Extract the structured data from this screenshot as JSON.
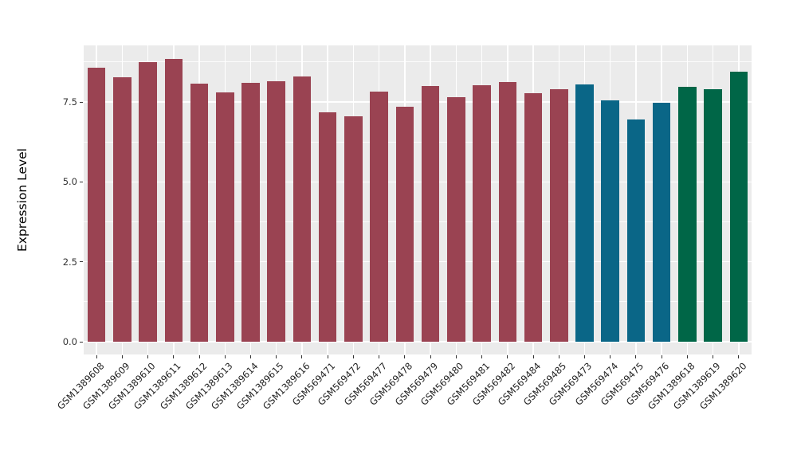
{
  "figure": {
    "background": "#ffffff",
    "panel_background": "#ebebeb",
    "gridline_color": "#ffffff"
  },
  "chart_data": {
    "type": "bar",
    "title": "",
    "xlabel": "",
    "ylabel": "Expression Level",
    "legend_position": "none",
    "grid": "on",
    "y_ticks": [
      "0.0",
      "2.5",
      "5.0",
      "7.5"
    ],
    "y_tick_values": [
      0,
      2.5,
      5.0,
      7.5
    ],
    "y_minor_tick_values": [
      1.25,
      3.75,
      6.25,
      8.75
    ],
    "ylim": [
      -0.4,
      9.27
    ],
    "categories": [
      "GSM1389608",
      "GSM1389609",
      "GSM1389610",
      "GSM1389611",
      "GSM1389612",
      "GSM1389613",
      "GSM1389614",
      "GSM1389615",
      "GSM1389616",
      "GSM569471",
      "GSM569472",
      "GSM569477",
      "GSM569478",
      "GSM569479",
      "GSM569480",
      "GSM569481",
      "GSM569482",
      "GSM569484",
      "GSM569485",
      "GSM569473",
      "GSM569474",
      "GSM569475",
      "GSM569476",
      "GSM1389618",
      "GSM1389619",
      "GSM1389620"
    ],
    "values": [
      8.57,
      8.28,
      8.74,
      8.85,
      8.08,
      7.79,
      8.09,
      8.14,
      8.3,
      7.17,
      7.05,
      7.82,
      7.34,
      8.0,
      7.66,
      8.03,
      8.12,
      7.78,
      7.89,
      8.05,
      7.54,
      6.96,
      7.47,
      7.98,
      7.9,
      8.46
    ],
    "bar_colors": [
      "#9a4352",
      "#9a4352",
      "#9a4352",
      "#9a4352",
      "#9a4352",
      "#9a4352",
      "#9a4352",
      "#9a4352",
      "#9a4352",
      "#9a4352",
      "#9a4352",
      "#9a4352",
      "#9a4352",
      "#9a4352",
      "#9a4352",
      "#9a4352",
      "#9a4352",
      "#9a4352",
      "#9a4352",
      "#0a6687",
      "#0a6687",
      "#0a6687",
      "#0a6687",
      "#006647",
      "#006647",
      "#006647"
    ],
    "palette": {
      "maroon": "#9a4352",
      "teal": "#0a6687",
      "green": "#006647"
    }
  }
}
